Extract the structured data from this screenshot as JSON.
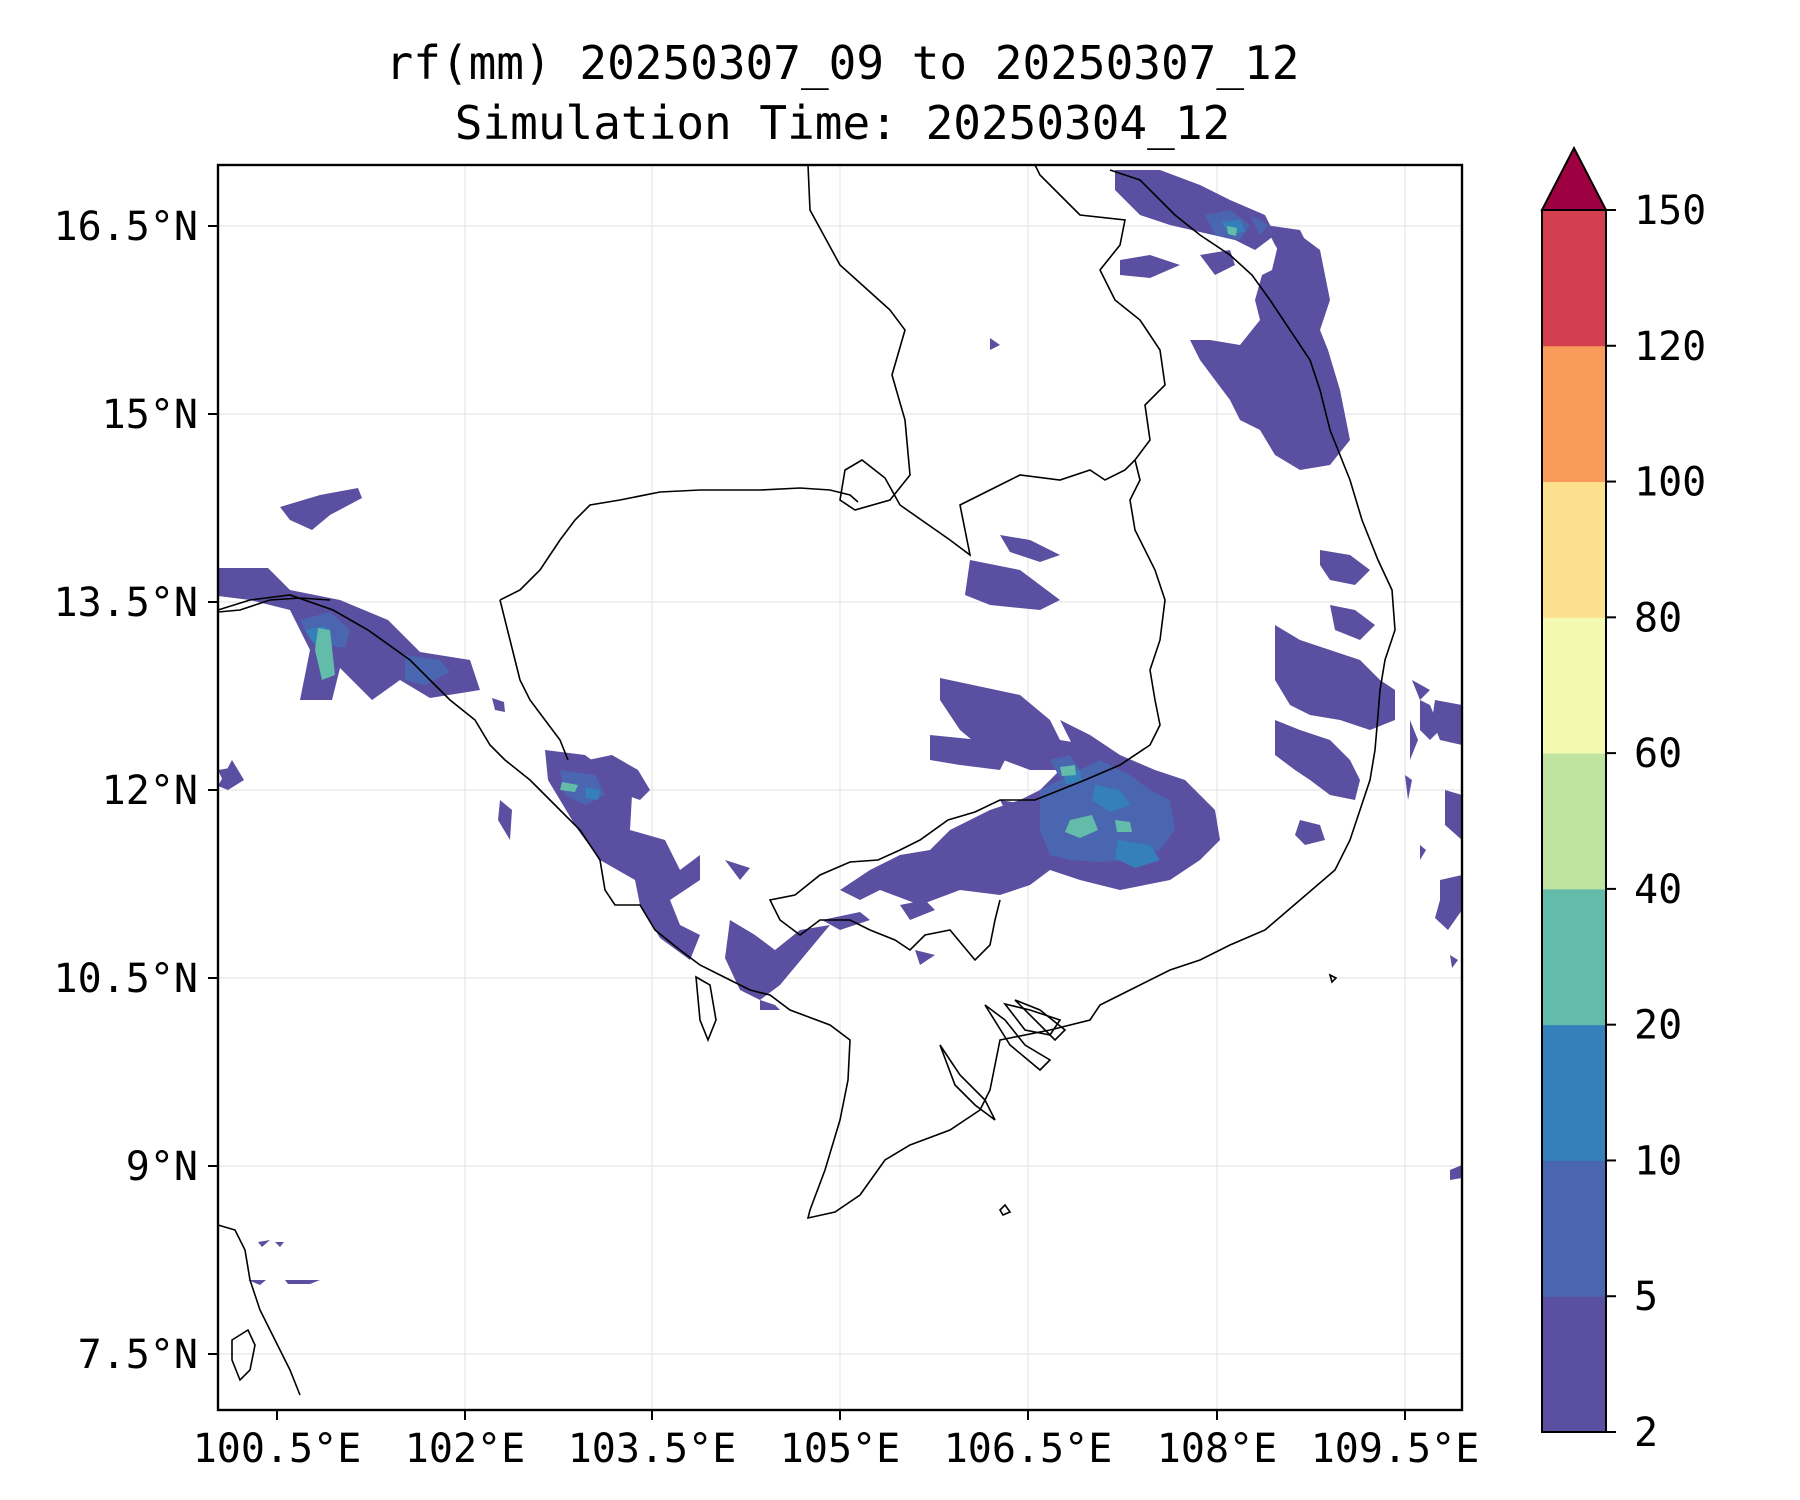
{
  "title": {
    "line1": "rf(mm) 20250307_09 to 20250307_12",
    "line2": "Simulation Time: 20250304_12"
  },
  "map": {
    "lon_ticks": [
      "100.5°E",
      "102°E",
      "103.5°E",
      "105°E",
      "106.5°E",
      "108°E",
      "109.5°E"
    ],
    "lat_ticks": [
      "16.5°N",
      "15°N",
      "13.5°N",
      "12°N",
      "10.5°N",
      "9°N",
      "7.5°N"
    ],
    "region": "Cambodia / southern Vietnam / eastern Thailand"
  },
  "colorbar": {
    "levels": [
      "2",
      "5",
      "10",
      "20",
      "40",
      "60",
      "80",
      "100",
      "120",
      "150"
    ],
    "colors": [
      "#5a4fa0",
      "#4a66b0",
      "#3580bb",
      "#62bca9",
      "#bfe3a0",
      "#f3f9b0",
      "#fde08e",
      "#f99b5a",
      "#d33f4e",
      "#9d0142"
    ],
    "extend": "max"
  }
}
